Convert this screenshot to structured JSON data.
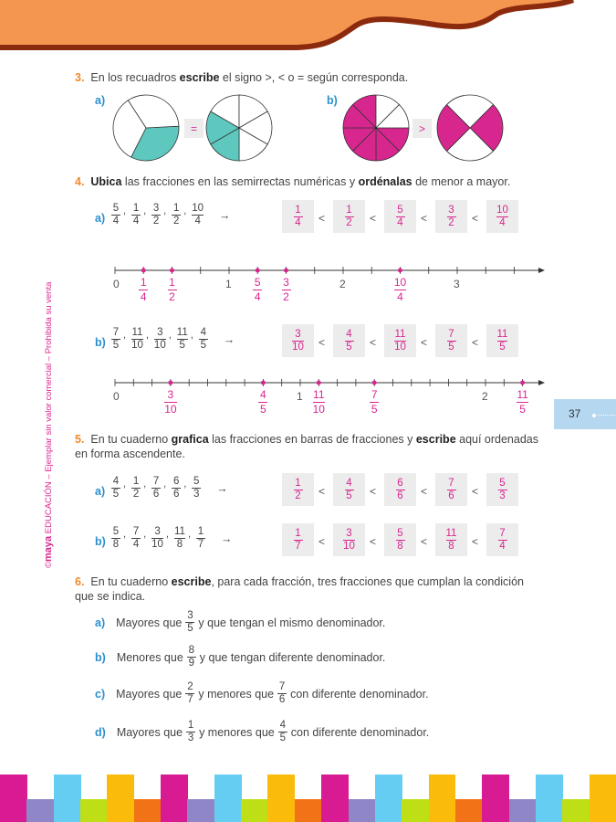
{
  "colors": {
    "orange": "#f4964f",
    "brown": "#8c2a0e",
    "pink": "#d8268f",
    "teal": "#5ec8bf",
    "blue": "#2a8fd0",
    "tab": "#b6d7f0"
  },
  "sidebar_text": {
    "brand": "maya",
    "rest": " EDUCACIÓN – Ejemplar sin valor comercial – Prohibida su venta",
    "copyright": "©"
  },
  "page_number": "37",
  "q3": {
    "num": "3.",
    "t1": "En los recuadros ",
    "b1": "escribe",
    "t2": " el signo >, < o = según corresponda.",
    "a": {
      "label": "a)",
      "sign": "=",
      "pie1": {
        "parts": 3,
        "shaded": [
          0
        ]
      },
      "pie2": {
        "parts": 6,
        "shaded": [
          1,
          2
        ]
      }
    },
    "b": {
      "label": "b)",
      "sign": ">",
      "pie1": {
        "parts": 8,
        "shaded": [
          0,
          1,
          2,
          3,
          4,
          5
        ]
      },
      "pie2": {
        "parts": 4,
        "shaded": [
          0,
          2
        ]
      }
    }
  },
  "q4": {
    "num": "4.",
    "b1": "Ubica",
    "t1": " las fracciones en las semirrectas numéricas y ",
    "b2": "ordénalas",
    "t2": " de menor a mayor.",
    "a": {
      "label": "a)",
      "given": [
        "5/4",
        "1/4",
        "3/2",
        "1/2",
        "10/4"
      ],
      "arrow": "→",
      "ordered": [
        "1/4",
        "1/2",
        "5/4",
        "3/2",
        "10/4"
      ],
      "sep": "<",
      "line": {
        "integers": [
          "0",
          "1",
          "2",
          "3"
        ],
        "step_den": 4,
        "points": [
          "1/4",
          "1/2",
          "5/4",
          "3/2",
          "10/4"
        ]
      }
    },
    "b": {
      "label": "b)",
      "given": [
        "7/5",
        "11/10",
        "3/10",
        "11/5",
        "4/5"
      ],
      "arrow": "→",
      "ordered": [
        "3/10",
        "4/5",
        "11/10",
        "7/5",
        "11/5"
      ],
      "sep": "<",
      "line": {
        "integers": [
          "0",
          "1",
          "2"
        ],
        "step_den": 10,
        "points": [
          "3/10",
          "4/5",
          "11/10",
          "7/5",
          "11/5"
        ]
      }
    }
  },
  "q5": {
    "num": "5.",
    "t1": "En tu cuaderno ",
    "b1": "grafica",
    "t2": " las fracciones en barras de fracciones y ",
    "b2": "escribe",
    "t3": " aquí ordenadas en forma ascendente.",
    "a": {
      "label": "a)",
      "given": [
        "4/5",
        "1/2",
        "7/6",
        "6/6",
        "5/3"
      ],
      "arrow": "→",
      "ordered": [
        "1/2",
        "4/5",
        "6/6",
        "7/6",
        "5/3"
      ],
      "sep": "<"
    },
    "b": {
      "label": "b)",
      "given": [
        "5/8",
        "7/4",
        "3/10",
        "11/8",
        "1/7"
      ],
      "arrow": "→",
      "ordered": [
        "1/7",
        "3/10",
        "5/8",
        "11/8",
        "7/4"
      ],
      "sep": "<"
    }
  },
  "q6": {
    "num": "6.",
    "t1": "En tu cuaderno ",
    "b1": "escribe",
    "t2": ", para cada fracción, tres fracciones que cumplan la condición que se indica.",
    "items": [
      {
        "label": "a)",
        "p1": "Mayores que",
        "f1": "3/5",
        "p2": "y que tengan el mismo denominador."
      },
      {
        "label": "b)",
        "p1": "Menores que",
        "f1": "8/9",
        "p2": "y que tengan diferente denominador."
      },
      {
        "label": "c)",
        "p1": "Mayores que",
        "f1": "2/7",
        "p2": "y menores que",
        "f2": "7/6",
        "p3": "con diferente denominador."
      },
      {
        "label": "d)",
        "p1": "Mayores que",
        "f1": "1/3",
        "p2": "y menores que",
        "f2": "4/5",
        "p3": "con diferente denominador."
      }
    ]
  }
}
